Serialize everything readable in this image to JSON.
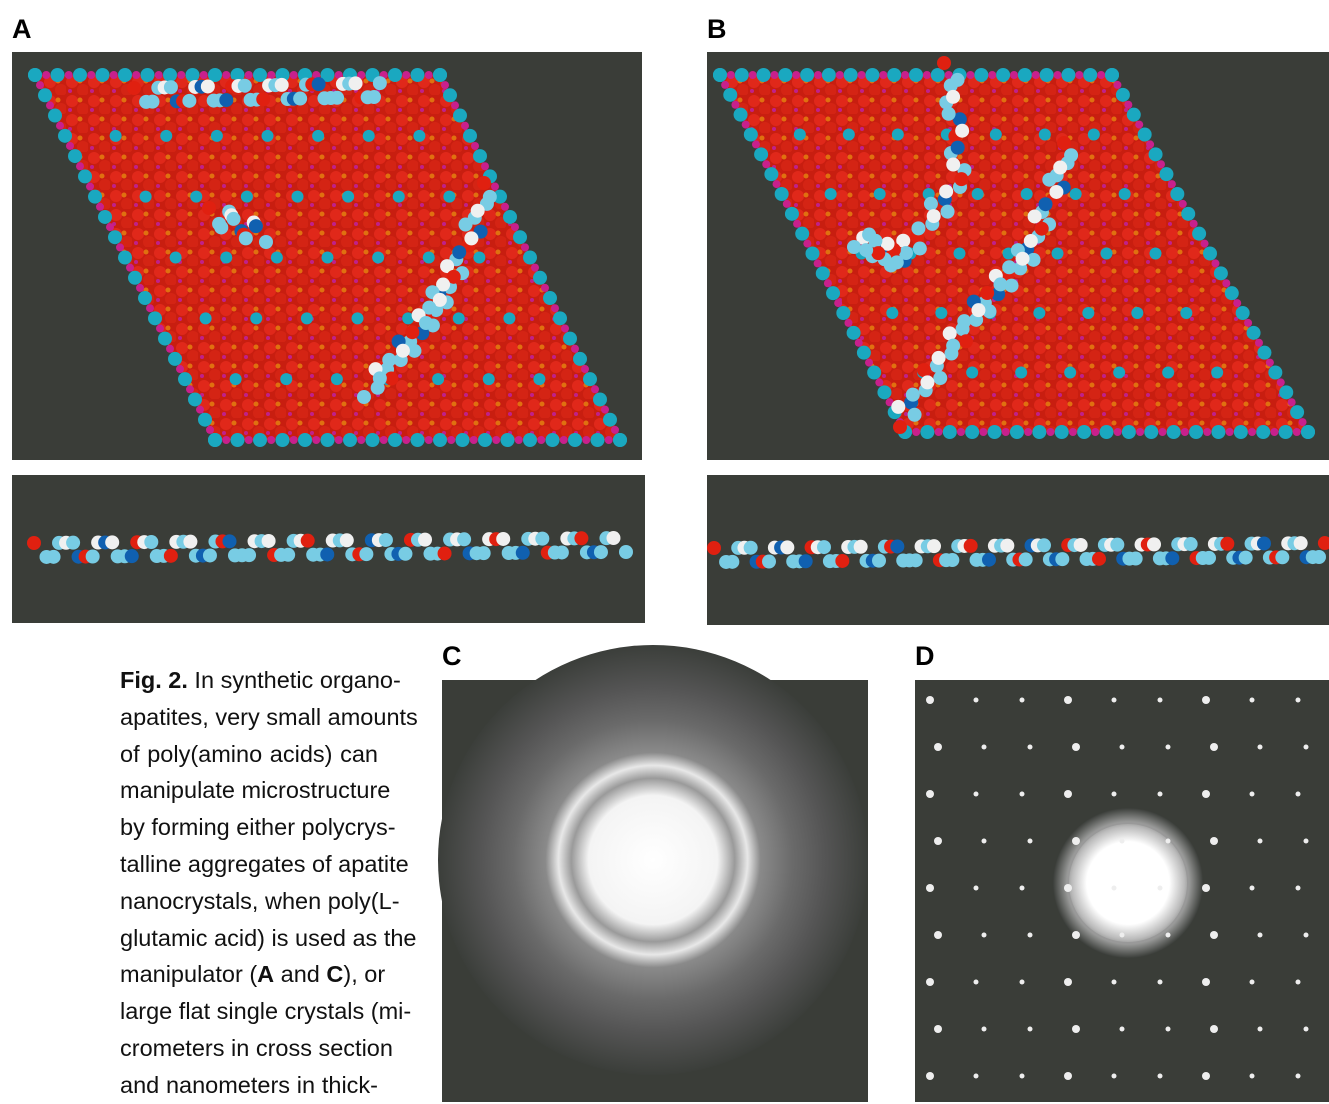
{
  "panels": {
    "a": "A",
    "b": "B",
    "c": "C",
    "d": "D"
  },
  "caption": {
    "lines": [
      [
        {
          "text": "Fig. 2.",
          "bold": true
        },
        {
          "text": " In synthetic organo-"
        }
      ],
      [
        {
          "text": "apatites, very small amounts"
        }
      ],
      [
        {
          "text": "of poly(amino acids) can"
        }
      ],
      [
        {
          "text": "manipulate microstructure"
        }
      ],
      [
        {
          "text": "by forming either polycrys-"
        }
      ],
      [
        {
          "text": "talline aggregates of apatite"
        }
      ],
      [
        {
          "text": "nanocrystals, when poly(L-"
        }
      ],
      [
        {
          "text": "glutamic acid) is used as the"
        }
      ],
      [
        {
          "text": "manipulator ("
        },
        {
          "text": "A",
          "bold": true
        },
        {
          "text": " and "
        },
        {
          "text": "C",
          "bold": true
        },
        {
          "text": "), or"
        }
      ],
      [
        {
          "text": "large flat single crystals (mi-"
        }
      ],
      [
        {
          "text": "crometers in cross section"
        }
      ],
      [
        {
          "text": "and nanometers in thick-"
        }
      ]
    ]
  }
}
